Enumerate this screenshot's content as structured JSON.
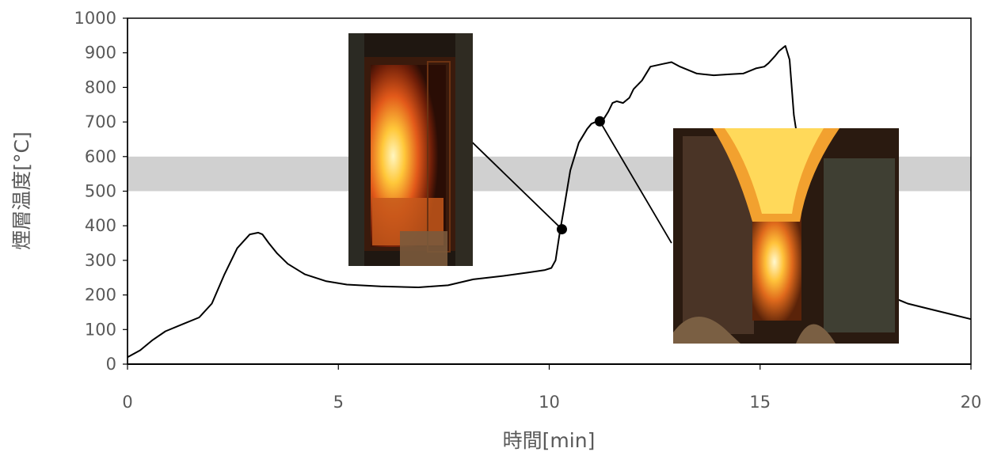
{
  "chart_data": {
    "type": "line",
    "title": "",
    "xlabel": "時間[min]",
    "ylabel": "煙層温度[°C]",
    "xlim": [
      0,
      20
    ],
    "ylim": [
      0,
      1000
    ],
    "x_ticks": [
      "0",
      "5",
      "10",
      "15",
      "20"
    ],
    "y_ticks": [
      "0",
      "100",
      "200",
      "300",
      "400",
      "500",
      "600",
      "700",
      "800",
      "900",
      "1000"
    ],
    "grid": false,
    "legend": "none",
    "shaded_band": {
      "y_from": 500,
      "y_to": 600,
      "color": "#d0d0d0"
    },
    "series": [
      {
        "line_color": "#000000",
        "x": [
          0,
          0.3,
          0.6,
          0.9,
          1.3,
          1.7,
          2.0,
          2.3,
          2.6,
          2.9,
          3.1,
          3.2,
          3.35,
          3.55,
          3.8,
          4.2,
          4.7,
          5.2,
          6.0,
          6.9,
          7.6,
          8.2,
          8.9,
          9.5,
          9.9,
          10.05,
          10.15,
          10.25,
          10.35,
          10.5,
          10.7,
          10.9,
          11.0,
          11.1,
          11.2,
          11.3,
          11.4,
          11.5,
          11.6,
          11.75,
          11.9,
          12.0,
          12.2,
          12.4,
          12.7,
          12.9,
          13.1,
          13.5,
          13.9,
          14.3,
          14.6,
          14.9,
          15.1,
          15.2,
          15.35,
          15.45,
          15.55,
          15.6,
          15.7,
          15.8,
          15.9,
          16.1,
          16.5,
          17.0,
          17.5,
          18.0,
          18.5,
          19.0,
          19.5,
          20.0
        ],
        "y": [
          20,
          40,
          70,
          95,
          115,
          135,
          175,
          260,
          335,
          375,
          380,
          375,
          350,
          320,
          290,
          260,
          240,
          230,
          225,
          222,
          228,
          245,
          255,
          265,
          272,
          278,
          300,
          380,
          450,
          560,
          640,
          680,
          695,
          700,
          702,
          710,
          730,
          755,
          760,
          755,
          770,
          795,
          820,
          860,
          868,
          873,
          860,
          840,
          835,
          838,
          840,
          855,
          860,
          870,
          890,
          905,
          915,
          920,
          880,
          720,
          640,
          540,
          420,
          320,
          250,
          200,
          175,
          160,
          145,
          130
        ]
      }
    ],
    "connectors": [
      {
        "from": [
          8.1,
          650
        ],
        "to": [
          10.3,
          390
        ]
      },
      {
        "from": [
          11.2,
          702
        ],
        "to": [
          12.9,
          350
        ]
      }
    ],
    "markers": [
      {
        "x": 10.3,
        "y": 390
      },
      {
        "x": 11.2,
        "y": 702
      }
    ]
  }
}
